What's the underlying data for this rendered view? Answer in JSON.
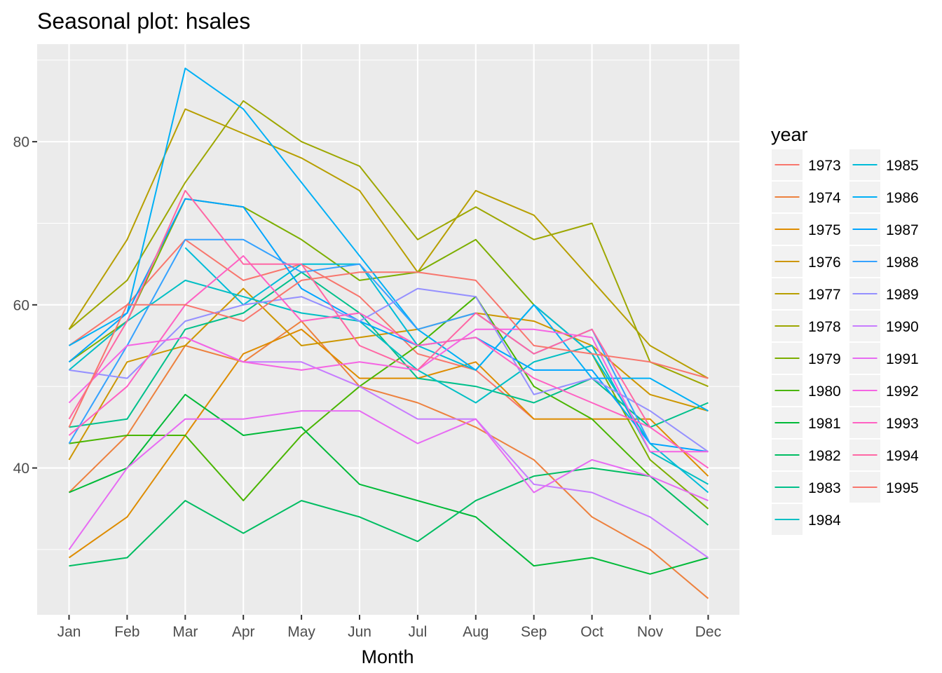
{
  "chart_data": {
    "type": "line",
    "title": "Seasonal plot: hsales",
    "xlabel": "Month",
    "ylabel": "",
    "legend_title": "year",
    "legend_position": "right",
    "grid": true,
    "background": "#EBEBEB",
    "categories": [
      "Jan",
      "Feb",
      "Mar",
      "Apr",
      "May",
      "Jun",
      "Jul",
      "Aug",
      "Sep",
      "Oct",
      "Nov",
      "Dec"
    ],
    "ylim": [
      22,
      92
    ],
    "y_ticks": [
      40,
      60,
      80
    ],
    "series": [
      {
        "name": "1973",
        "color": "#F8766D",
        "values": [
          55,
          60,
          68,
          63,
          65,
          61,
          54,
          52,
          46,
          null,
          null,
          null
        ]
      },
      {
        "name": "1974",
        "color": "#ED813E",
        "values": [
          37,
          44,
          55,
          53,
          58,
          50,
          48,
          45,
          41,
          34,
          30,
          24
        ]
      },
      {
        "name": "1975",
        "color": "#DE8C00",
        "values": [
          29,
          34,
          44,
          54,
          57,
          51,
          51,
          53,
          46,
          46,
          46,
          39
        ]
      },
      {
        "name": "1976",
        "color": "#CD9600",
        "values": [
          41,
          53,
          55,
          62,
          55,
          56,
          57,
          59,
          58,
          55,
          49,
          47
        ]
      },
      {
        "name": "1977",
        "color": "#B79F00",
        "values": [
          57,
          68,
          84,
          81,
          78,
          74,
          64,
          74,
          71,
          63,
          55,
          51
        ]
      },
      {
        "name": "1978",
        "color": "#9DA700",
        "values": [
          57,
          63,
          75,
          85,
          80,
          77,
          68,
          72,
          68,
          70,
          53,
          50
        ]
      },
      {
        "name": "1979",
        "color": "#7CAE00",
        "values": [
          53,
          58,
          73,
          72,
          68,
          63,
          64,
          68,
          60,
          54,
          41,
          35
        ]
      },
      {
        "name": "1980",
        "color": "#49B500",
        "values": [
          43,
          44,
          44,
          36,
          44,
          50,
          55,
          61,
          50,
          46,
          39,
          null
        ]
      },
      {
        "name": "1981",
        "color": "#00BA38",
        "values": [
          37,
          40,
          49,
          44,
          45,
          38,
          36,
          34,
          28,
          29,
          27,
          29
        ]
      },
      {
        "name": "1982",
        "color": "#00BD62",
        "values": [
          28,
          29,
          36,
          32,
          36,
          34,
          31,
          36,
          39,
          40,
          39,
          33
        ]
      },
      {
        "name": "1983",
        "color": "#00C08B",
        "values": [
          45,
          46,
          57,
          59,
          64,
          59,
          51,
          50,
          48,
          51,
          45,
          48
        ]
      },
      {
        "name": "1984",
        "color": "#00BFC4",
        "values": [
          52,
          58,
          63,
          61,
          59,
          58,
          52,
          48,
          53,
          55,
          42,
          38
        ]
      },
      {
        "name": "1985",
        "color": "#00BCD8",
        "values": [
          null,
          null,
          67,
          60,
          65,
          65,
          55,
          52,
          60,
          54,
          43,
          37
        ]
      },
      {
        "name": "1986",
        "color": "#00B0F6",
        "values": [
          55,
          59,
          89,
          84,
          75,
          66,
          57,
          52,
          60,
          51,
          51,
          47
        ]
      },
      {
        "name": "1987",
        "color": "#00A5FF",
        "values": [
          53,
          59,
          73,
          72,
          62,
          58,
          55,
          56,
          52,
          52,
          43,
          42
        ]
      },
      {
        "name": "1988",
        "color": "#35A2FF",
        "values": [
          43,
          55,
          68,
          68,
          64,
          65,
          57,
          59,
          54,
          57,
          43,
          null
        ]
      },
      {
        "name": "1989",
        "color": "#9590FF",
        "values": [
          52,
          51,
          58,
          60,
          61,
          58,
          62,
          61,
          49,
          51,
          47,
          42
        ]
      },
      {
        "name": "1990",
        "color": "#C77CFF",
        "values": [
          null,
          null,
          56,
          53,
          53,
          50,
          46,
          46,
          38,
          37,
          34,
          29
        ]
      },
      {
        "name": "1991",
        "color": "#E76BF3",
        "values": [
          30,
          40,
          46,
          46,
          47,
          47,
          43,
          46,
          37,
          41,
          39,
          36
        ]
      },
      {
        "name": "1992",
        "color": "#F564E3",
        "values": [
          48,
          55,
          56,
          53,
          52,
          53,
          52,
          57,
          57,
          56,
          42,
          42
        ]
      },
      {
        "name": "1993",
        "color": "#FF61C3",
        "values": [
          44,
          50,
          60,
          66,
          58,
          59,
          55,
          56,
          51,
          48,
          45,
          40
        ]
      },
      {
        "name": "1994",
        "color": "#FF67A4",
        "values": [
          46,
          58,
          74,
          65,
          65,
          55,
          52,
          59,
          54,
          57,
          45,
          null
        ]
      },
      {
        "name": "1995",
        "color": "#F8766D",
        "values": [
          45,
          60,
          60,
          58,
          63,
          64,
          64,
          63,
          55,
          54,
          53,
          51
        ]
      }
    ]
  }
}
